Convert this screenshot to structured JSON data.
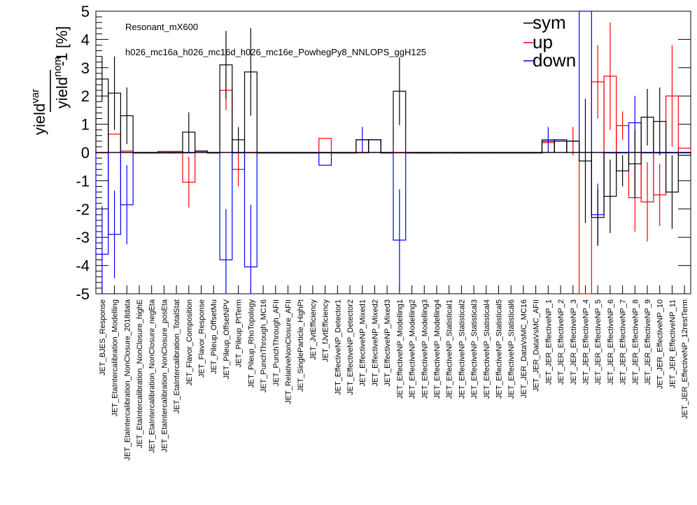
{
  "chart_data": {
    "type": "bar",
    "annotations": [
      "Resonant_mX600",
      "h026_mc16a_h026_mc16d_h026_mc16e_PowhegPy8_NNLOPS_ggH125"
    ],
    "ylabel": {
      "numerator": "yield",
      "numerator_sup": "var",
      "denominator": "yield",
      "denominator_sup": "nom",
      "suffix": "-1 [%]"
    },
    "ylim": [
      -5,
      5
    ],
    "yticks": [
      -5,
      -4,
      -3,
      -2,
      -1,
      0,
      1,
      2,
      3,
      4,
      5
    ],
    "legend": {
      "position": "top-right",
      "entries": [
        "sym",
        "up",
        "down"
      ]
    },
    "colors": {
      "sym": "#000000",
      "up": "#ff0000",
      "down": "#0000ff"
    },
    "categories": [
      "JET_BJES_Response",
      "JET_EtaIntercalibration_Modelling",
      "JET_EtaIntercalibration_NonClosure_2018data",
      "JET_EtaIntercalibration_NonClosure_highE",
      "JET_EtaIntercalibration_NonClosure_negEta",
      "JET_EtaIntercalibration_NonClosure_posEta",
      "JET_EtaIntercalibration_TotalStat",
      "JET_Flavor_Composition",
      "JET_Flavor_Response",
      "JET_Pileup_OffsetMu",
      "JET_Pileup_OffsetNPV",
      "JET_Pileup_PtTerm",
      "JET_Pileup_RhoTopology",
      "JET_PunchThrough_MC16",
      "JET_PunchThrough_AFII",
      "JET_RelativeNonClosure_AFII",
      "JET_SingleParticle_HighPt",
      "JET_JvtEfficiency",
      "JET_fJvtEfficiency",
      "JET_EffectiveNP_Detector1",
      "JET_EffectiveNP_Detector2",
      "JET_EffectiveNP_Mixed1",
      "JET_EffectiveNP_Mixed2",
      "JET_EffectiveNP_Mixed3",
      "JET_EffectiveNP_Modelling1",
      "JET_EffectiveNP_Modelling2",
      "JET_EffectiveNP_Modelling3",
      "JET_EffectiveNP_Modelling4",
      "JET_EffectiveNP_Statistical1",
      "JET_EffectiveNP_Statistical2",
      "JET_EffectiveNP_Statistical3",
      "JET_EffectiveNP_Statistical4",
      "JET_EffectiveNP_Statistical5",
      "JET_EffectiveNP_Statistical6",
      "JET_JER_DataVsMC_MC16",
      "JET_JER_DataVsMC_AFII",
      "JET_JER_EffectiveNP_1",
      "JET_JER_EffectiveNP_2",
      "JET_JER_EffectiveNP_3",
      "JET_JER_EffectiveNP_4",
      "JET_JER_EffectiveNP_5",
      "JET_JER_EffectiveNP_6",
      "JET_JER_EffectiveNP_7",
      "JET_JER_EffectiveNP_8",
      "JET_JER_EffectiveNP_9",
      "JET_JER_EffectiveNP_10",
      "JET_JER_EffectiveNP_11",
      "JET_JER_EffectiveNP_12restTerm"
    ],
    "series": [
      {
        "name": "sym",
        "values": [
          2.6,
          2.1,
          1.3,
          0,
          0,
          0,
          0,
          0.72,
          0.05,
          0,
          3.1,
          0.45,
          2.85,
          0,
          0,
          0,
          0,
          0,
          0,
          0,
          0,
          0.45,
          0.45,
          0,
          2.17,
          0,
          0,
          0,
          0,
          0,
          0,
          0,
          0,
          0,
          0,
          0,
          0.4,
          0.4,
          0.4,
          -0.3,
          -2.3,
          -1.55,
          -0.65,
          -0.4,
          1.25,
          1.1,
          -1.4,
          -0.1
        ],
        "errors": [
          0.8,
          1.3,
          1.0,
          0,
          0,
          0,
          0,
          0.7,
          0,
          0,
          1.2,
          0.45,
          1.55,
          0,
          0,
          0,
          0,
          0,
          0,
          0,
          0,
          0,
          0,
          0,
          1.2,
          0,
          0,
          0,
          0,
          0,
          0,
          0,
          0,
          0,
          0,
          0,
          0,
          0,
          0,
          2.2,
          1.0,
          1.3,
          0.55,
          1.2,
          1.0,
          1.2,
          1.3,
          0
        ]
      },
      {
        "name": "up",
        "values": [
          0,
          0.65,
          0.05,
          0,
          0,
          0.04,
          0.04,
          -1.05,
          0.05,
          0,
          2.2,
          -0.6,
          0,
          0,
          0,
          0,
          0,
          0,
          0.5,
          0,
          0,
          0,
          0.45,
          0,
          0,
          0,
          -0.02,
          0,
          0,
          -0.02,
          0,
          0,
          0,
          0,
          0,
          0,
          0.35,
          0.45,
          0.4,
          -5,
          2.5,
          2.7,
          0.95,
          -1.6,
          -1.75,
          -1.5,
          2.0,
          0.15
        ],
        "errors": [
          0,
          0,
          0,
          0,
          0,
          0,
          0,
          0.9,
          0,
          0,
          0.7,
          0.6,
          0,
          0,
          0,
          0,
          0,
          0,
          0,
          0,
          0,
          0,
          0,
          0,
          0,
          0,
          0,
          0,
          0,
          0,
          0,
          0,
          0,
          0,
          0,
          0,
          0,
          0,
          0.5,
          0,
          1.3,
          1.9,
          0.5,
          1.2,
          1.4,
          1.1,
          1.8,
          0
        ]
      },
      {
        "name": "down",
        "values": [
          -3.6,
          -2.9,
          -1.85,
          0,
          0,
          0,
          0,
          0,
          0.05,
          0,
          -3.8,
          0,
          -4.05,
          0,
          0,
          0,
          0,
          0,
          -0.45,
          0,
          0,
          0.45,
          0.45,
          0,
          -3.1,
          0,
          0,
          0,
          0,
          0,
          0,
          0,
          0,
          0,
          0,
          0,
          0.45,
          0.45,
          0.4,
          5,
          -2.2,
          0,
          0,
          1.05,
          0,
          0,
          0,
          0
        ],
        "errors": [
          1.7,
          1.55,
          1.4,
          0,
          0,
          0,
          0,
          0,
          0,
          0,
          1.8,
          0,
          2.2,
          0,
          0,
          0,
          0,
          0,
          0,
          0,
          0,
          0.45,
          0,
          0,
          1.8,
          0,
          0,
          0,
          0,
          0,
          0,
          0,
          0,
          0,
          0,
          0,
          0.45,
          0,
          0,
          0,
          1.1,
          0,
          0,
          0.95,
          0,
          0,
          0,
          0
        ]
      }
    ]
  }
}
